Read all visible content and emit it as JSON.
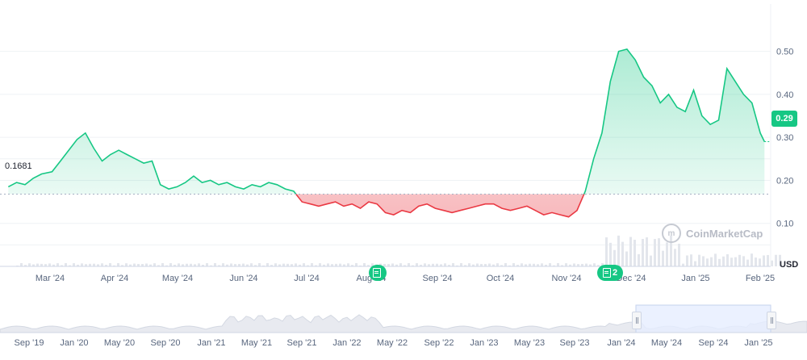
{
  "chart_data": {
    "type": "line",
    "baseline": 0.1681,
    "baseline_label": "0.1681",
    "current_price_label": "0.29",
    "currency_label": "USD",
    "ylim": [
      0.0,
      0.61
    ],
    "y_ticks": [
      "0.10",
      "0.20",
      "0.30",
      "0.40",
      "0.50"
    ],
    "x_labels": [
      "Mar '24",
      "Apr '24",
      "May '24",
      "Jun '24",
      "Jul '24",
      "Aug '24",
      "Sep '24",
      "Oct '24",
      "Nov '24",
      "Dec '24",
      "Jan '25",
      "Feb '25"
    ],
    "series": [
      {
        "x": [
          "2024-02-09",
          "2024-02-13",
          "2024-02-17",
          "2024-02-21",
          "2024-02-25",
          "2024-03-01",
          "2024-03-05",
          "2024-03-09",
          "2024-03-13",
          "2024-03-17",
          "2024-03-21",
          "2024-03-25",
          "2024-03-29",
          "2024-04-02",
          "2024-04-06",
          "2024-04-10",
          "2024-04-14",
          "2024-04-18",
          "2024-04-22",
          "2024-04-26",
          "2024-04-30",
          "2024-05-04",
          "2024-05-08",
          "2024-05-12",
          "2024-05-16",
          "2024-05-20",
          "2024-05-24",
          "2024-05-28",
          "2024-06-01",
          "2024-06-05",
          "2024-06-09",
          "2024-06-13",
          "2024-06-17",
          "2024-06-21",
          "2024-06-25",
          "2024-06-29",
          "2024-07-03",
          "2024-07-07",
          "2024-07-11",
          "2024-07-15",
          "2024-07-19",
          "2024-07-23",
          "2024-07-27",
          "2024-07-31",
          "2024-08-04",
          "2024-08-08",
          "2024-08-12",
          "2024-08-16",
          "2024-08-20",
          "2024-08-24",
          "2024-08-28",
          "2024-09-01",
          "2024-09-05",
          "2024-09-09",
          "2024-09-13",
          "2024-09-17",
          "2024-09-21",
          "2024-09-25",
          "2024-09-29",
          "2024-10-03",
          "2024-10-07",
          "2024-10-11",
          "2024-10-15",
          "2024-10-19",
          "2024-10-23",
          "2024-10-27",
          "2024-10-31",
          "2024-11-04",
          "2024-11-08",
          "2024-11-12",
          "2024-11-16",
          "2024-11-20",
          "2024-11-24",
          "2024-11-28",
          "2024-12-02",
          "2024-12-06",
          "2024-12-10",
          "2024-12-14",
          "2024-12-18",
          "2024-12-22",
          "2024-12-26",
          "2024-12-30",
          "2025-01-03",
          "2025-01-07",
          "2025-01-11",
          "2025-01-15",
          "2025-01-19",
          "2025-01-23",
          "2025-01-27",
          "2025-01-31",
          "2025-02-04",
          "2025-02-06"
        ],
        "y": [
          0.185,
          0.195,
          0.19,
          0.205,
          0.215,
          0.22,
          0.245,
          0.27,
          0.295,
          0.31,
          0.275,
          0.245,
          0.26,
          0.27,
          0.26,
          0.25,
          0.24,
          0.245,
          0.19,
          0.18,
          0.185,
          0.195,
          0.21,
          0.195,
          0.2,
          0.19,
          0.195,
          0.185,
          0.18,
          0.19,
          0.185,
          0.195,
          0.19,
          0.18,
          0.175,
          0.15,
          0.145,
          0.14,
          0.145,
          0.15,
          0.14,
          0.145,
          0.135,
          0.15,
          0.145,
          0.125,
          0.12,
          0.13,
          0.125,
          0.14,
          0.145,
          0.135,
          0.13,
          0.125,
          0.13,
          0.135,
          0.14,
          0.145,
          0.145,
          0.135,
          0.13,
          0.135,
          0.14,
          0.13,
          0.12,
          0.125,
          0.12,
          0.115,
          0.13,
          0.175,
          0.25,
          0.31,
          0.43,
          0.5,
          0.505,
          0.48,
          0.44,
          0.42,
          0.38,
          0.4,
          0.37,
          0.36,
          0.41,
          0.35,
          0.33,
          0.34,
          0.46,
          0.43,
          0.4,
          0.38,
          0.31,
          0.29
        ]
      }
    ],
    "navigator": {
      "x_labels": [
        "Sep '19",
        "Jan '20",
        "May '20",
        "Sep '20",
        "Jan '21",
        "May '21",
        "Sep '21",
        "Jan '22",
        "May '22",
        "Sep '22",
        "Jan '23",
        "May '23",
        "Sep '23",
        "Jan '24",
        "May '24",
        "Sep '24",
        "Jan '25"
      ]
    },
    "events": [
      {
        "label": ""
      },
      {
        "label": "2"
      }
    ],
    "watermark": "CoinMarketCap"
  },
  "colors": {
    "up": "#16c784",
    "down": "#ea3943",
    "grid": "#eff2f5",
    "navigator_fill": "#e8eaf0",
    "navigator_selection": "#e6eeff"
  }
}
